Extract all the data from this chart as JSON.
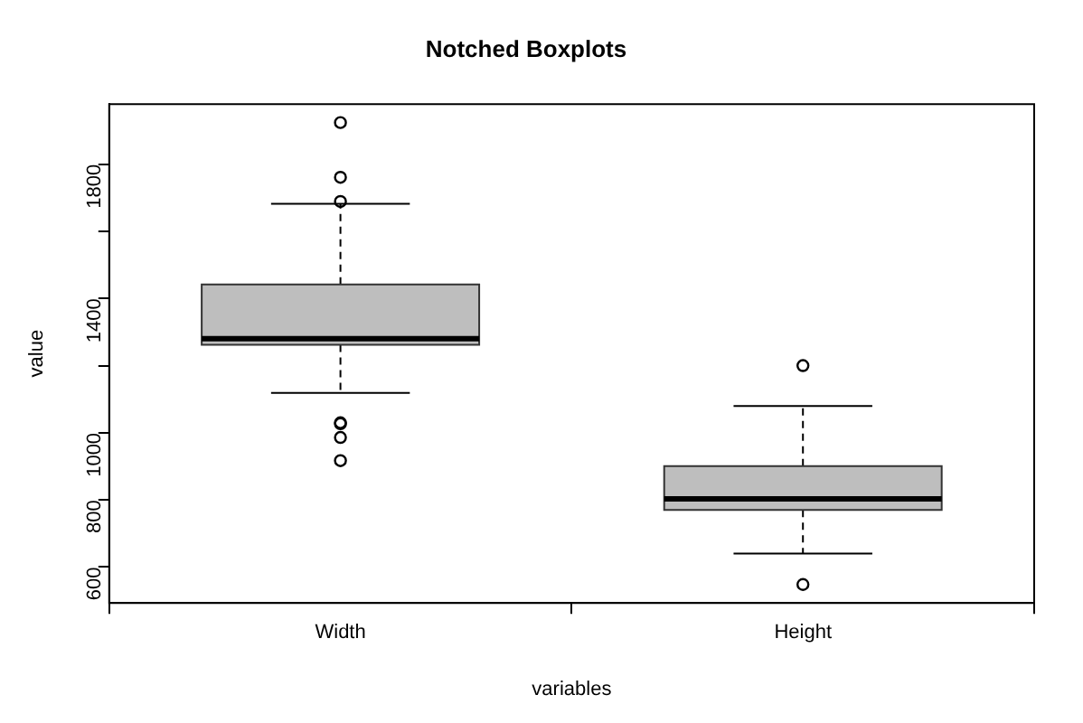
{
  "chart_data": {
    "type": "box",
    "title": "Notched Boxplots",
    "xlabel": "variables",
    "ylabel": "value",
    "categories": [
      "Width",
      "Height"
    ],
    "boxes": [
      {
        "low": 1119,
        "q1": 1262,
        "median": 1280,
        "q3": 1442,
        "high": 1682,
        "outliers": [
          1924,
          1761,
          1689,
          1030,
          1027,
          986,
          917
        ]
      },
      {
        "low": 640,
        "q1": 770,
        "median": 803,
        "q3": 901,
        "high": 1080,
        "outliers": [
          1200,
          548
        ]
      }
    ],
    "color": "#bebebe",
    "ylim": [
      493,
      1979
    ],
    "yticks": [
      600,
      800,
      1000,
      {
        "value": 1200,
        "label": null
      },
      1400,
      {
        "value": 1600,
        "label": null
      },
      1800
    ],
    "grid": false,
    "legend": false
  }
}
